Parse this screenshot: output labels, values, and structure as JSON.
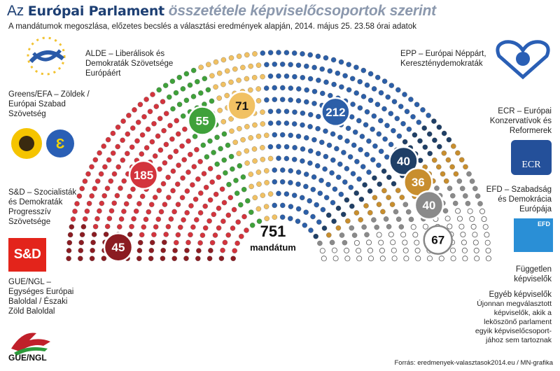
{
  "title": {
    "part1": "Az",
    "part2": "Európai Parlament",
    "part3": "összetétele képviselőcsoportok szerint"
  },
  "subtitle": "A mandátumok megoszlása, előzetes becslés a választási eredmények alapján, 2014. május 25. 23.58 órai adatok",
  "center": {
    "number": "751",
    "label": "mandátum"
  },
  "source": "Forrás: eredmenyek-valasztasok2014.eu / MN-grafika",
  "colors": {
    "gue": "#8b1c22",
    "sd": "#d3343d",
    "greens": "#3fa13a",
    "alde": "#f1c163",
    "epp": "#2c5fa8",
    "ecr": "#1f3f66",
    "efd": "#c88e2e",
    "ni": "#8a8a8a",
    "other": "#ffffff"
  },
  "groups": [
    {
      "key": "gue",
      "value": "45",
      "label_lines": [
        "GUE/NGL –",
        "Egységes Európai",
        "Baloldal / Északi",
        "Zöld Baloldal"
      ],
      "logo_text": "GUE/NGL"
    },
    {
      "key": "sd",
      "value": "185",
      "label_lines": [
        "S&D – Szocialisták",
        "és Demokraták",
        "Progresszív",
        "Szövetsége"
      ],
      "logo_text": "S&D"
    },
    {
      "key": "greens",
      "value": "55",
      "label_lines": [
        "Greens/EFA – Zöldek /",
        "Európai Szabad",
        "Szövetség"
      ]
    },
    {
      "key": "alde",
      "value": "71",
      "label_lines": [
        "ALDE – Liberálisok és",
        "Demokraták Szövetsége",
        "Európáért"
      ]
    },
    {
      "key": "epp",
      "value": "212",
      "label_lines": [
        "EPP – Európai Néppárt,",
        "Kereszténydemokraták"
      ]
    },
    {
      "key": "ecr",
      "value": "40",
      "label_lines": [
        "ECR – Európai",
        "Konzervatívok és",
        "Reformerek"
      ],
      "logo_text": "ECR"
    },
    {
      "key": "efd",
      "value": "36",
      "label_lines": [
        "EFD – Szabadság",
        "és Demokrácia",
        "Európája"
      ],
      "logo_text": "EFD"
    },
    {
      "key": "ni",
      "value": "40",
      "label_lines": [
        "Független",
        "képviselők"
      ]
    },
    {
      "key": "other",
      "value": "67",
      "label_lines": [
        "Egyéb képviselők",
        "Újonnan megválasztott",
        "képviselők, akik a",
        "leköszönő parlament",
        "egyik képviselőcsoport-",
        "jához sem tartoznak"
      ]
    }
  ],
  "chart_data": {
    "type": "parliament",
    "title": "Az Európai Parlament összetétele képviselőcsoportok szerint",
    "total": 751,
    "categories": [
      "GUE/NGL",
      "S&D",
      "Greens/EFA",
      "ALDE",
      "EPP",
      "ECR",
      "EFD",
      "Független képviselők",
      "Egyéb képviselők"
    ],
    "values": [
      45,
      185,
      55,
      71,
      212,
      40,
      36,
      40,
      67
    ]
  }
}
